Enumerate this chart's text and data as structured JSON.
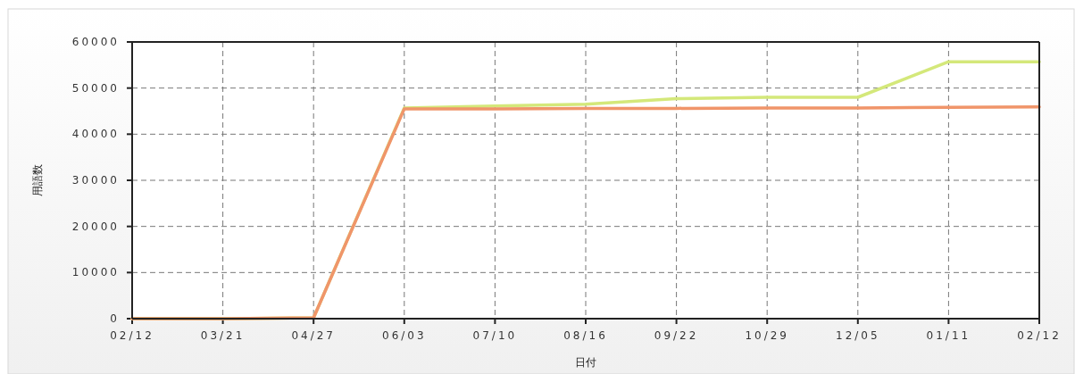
{
  "chart_data": {
    "type": "line",
    "xlabel": "日付",
    "ylabel": "用語数",
    "categories": [
      "02/12",
      "03/21",
      "04/27",
      "06/03",
      "07/10",
      "08/16",
      "09/22",
      "10/29",
      "12/05",
      "01/11",
      "02/12"
    ],
    "series": [
      {
        "color": "#d4e87a",
        "values": [
          0,
          0,
          200,
          45700,
          46100,
          46500,
          47700,
          48000,
          48000,
          55700,
          55700
        ]
      },
      {
        "color": "#f0956a",
        "values": [
          0,
          0,
          200,
          45500,
          45500,
          45600,
          45600,
          45700,
          45700,
          45800,
          45900
        ]
      }
    ],
    "ylim": [
      0,
      60000
    ],
    "yticks": [
      0,
      10000,
      20000,
      30000,
      40000,
      50000,
      60000
    ],
    "grid": true,
    "line_style": "solid"
  }
}
